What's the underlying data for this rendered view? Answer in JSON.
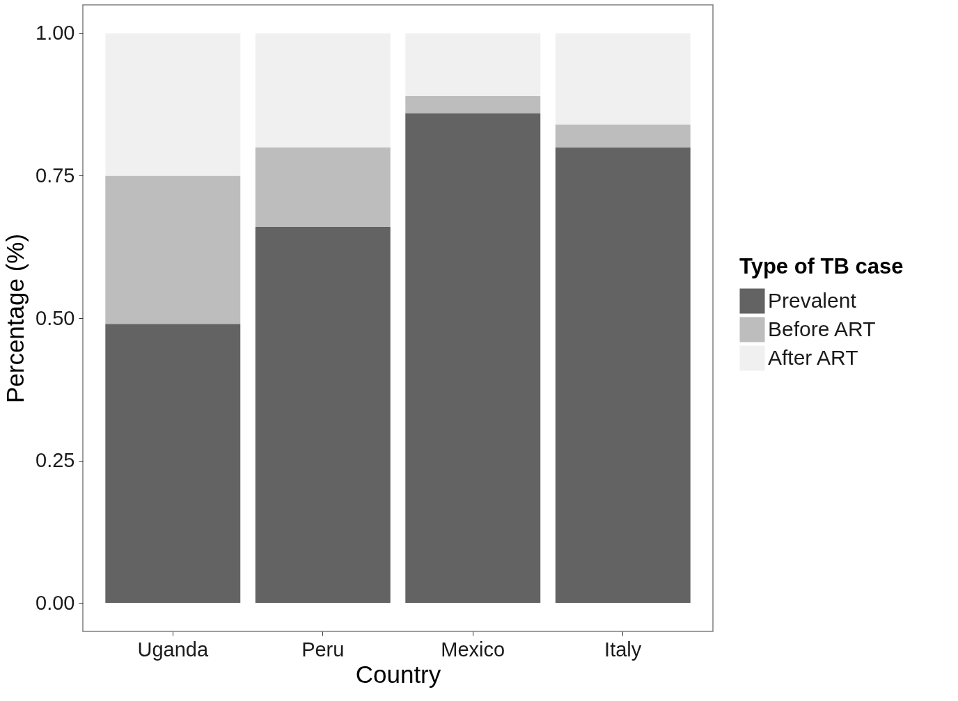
{
  "chart_data": {
    "type": "bar",
    "stacked": true,
    "xlabel": "Country",
    "ylabel": "Percentage (%)",
    "legend_title": "Type of TB case",
    "categories": [
      "Uganda",
      "Peru",
      "Mexico",
      "Italy"
    ],
    "series": [
      {
        "name": "Prevalent",
        "color": "#636363",
        "values": [
          0.49,
          0.66,
          0.86,
          0.8
        ]
      },
      {
        "name": "Before ART",
        "color": "#bdbdbd",
        "values": [
          0.26,
          0.14,
          0.03,
          0.04
        ]
      },
      {
        "name": "After ART",
        "color": "#f0f0f0",
        "values": [
          0.25,
          0.2,
          0.11,
          0.16
        ]
      }
    ],
    "ylim": [
      -0.05,
      1.05
    ],
    "yticks": [
      {
        "value": 0,
        "label": "0.00"
      },
      0.25,
      {
        "value": 0.5,
        "label": "0.50"
      },
      0.75,
      {
        "value": 1,
        "label": "1.00"
      }
    ],
    "grid": false,
    "legend": "right"
  }
}
